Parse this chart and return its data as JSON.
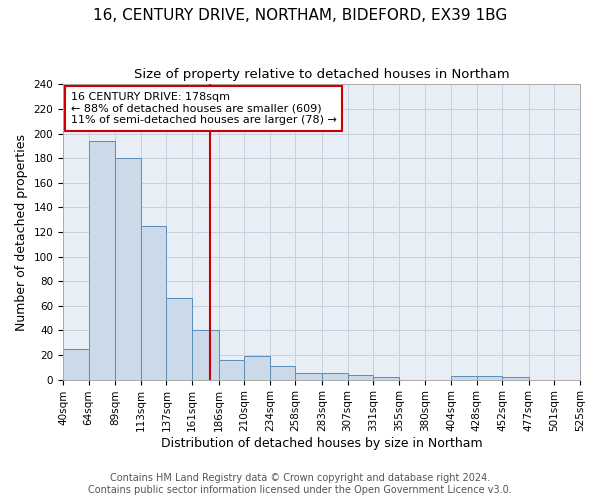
{
  "title": "16, CENTURY DRIVE, NORTHAM, BIDEFORD, EX39 1BG",
  "subtitle": "Size of property relative to detached houses in Northam",
  "xlabel": "Distribution of detached houses by size in Northam",
  "ylabel": "Number of detached properties",
  "bin_edges": [
    40,
    64,
    89,
    113,
    137,
    161,
    186,
    210,
    234,
    258,
    283,
    307,
    331,
    355,
    380,
    404,
    428,
    452,
    477,
    501,
    525
  ],
  "bar_heights": [
    25,
    194,
    180,
    125,
    66,
    40,
    16,
    19,
    11,
    5,
    5,
    4,
    2,
    0,
    0,
    3,
    3,
    2,
    0,
    0
  ],
  "bar_face_color": "#ccd9e8",
  "bar_edge_color": "#5b8db8",
  "property_value": 178,
  "vline_color": "#cc0000",
  "annotation_box_edge_color": "#cc0000",
  "annotation_line1": "16 CENTURY DRIVE: 178sqm",
  "annotation_line2": "← 88% of detached houses are smaller (609)",
  "annotation_line3": "11% of semi-detached houses are larger (78) →",
  "ylim": [
    0,
    240
  ],
  "yticks": [
    0,
    20,
    40,
    60,
    80,
    100,
    120,
    140,
    160,
    180,
    200,
    220,
    240
  ],
  "tick_labels": [
    "40sqm",
    "64sqm",
    "89sqm",
    "113sqm",
    "137sqm",
    "161sqm",
    "186sqm",
    "210sqm",
    "234sqm",
    "258sqm",
    "283sqm",
    "307sqm",
    "331sqm",
    "355sqm",
    "380sqm",
    "404sqm",
    "428sqm",
    "452sqm",
    "477sqm",
    "501sqm",
    "525sqm"
  ],
  "footer_line1": "Contains HM Land Registry data © Crown copyright and database right 2024.",
  "footer_line2": "Contains public sector information licensed under the Open Government Licence v3.0.",
  "background_color": "#ffffff",
  "plot_bg_color": "#e8eef5",
  "grid_color": "#c8d0dc",
  "title_fontsize": 11,
  "subtitle_fontsize": 9.5,
  "axis_label_fontsize": 9,
  "tick_fontsize": 7.5,
  "annotation_fontsize": 8,
  "footer_fontsize": 7
}
